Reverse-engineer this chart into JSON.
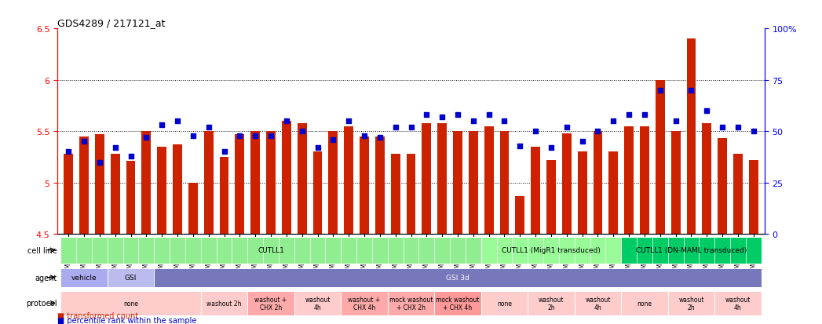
{
  "title": "GDS4289 / 217121_at",
  "samples": [
    "GSM731500",
    "GSM731501",
    "GSM731502",
    "GSM731503",
    "GSM731504",
    "GSM731505",
    "GSM731518",
    "GSM731519",
    "GSM731520",
    "GSM731506",
    "GSM731507",
    "GSM731508",
    "GSM731509",
    "GSM731510",
    "GSM731511",
    "GSM731512",
    "GSM731513",
    "GSM731514",
    "GSM731515",
    "GSM731516",
    "GSM731517",
    "GSM731521",
    "GSM731522",
    "GSM731523",
    "GSM731524",
    "GSM731525",
    "GSM731526",
    "GSM731527",
    "GSM731528",
    "GSM731529",
    "GSM731531",
    "GSM731532",
    "GSM731533",
    "GSM731534",
    "GSM731535",
    "GSM731536",
    "GSM731537",
    "GSM731538",
    "GSM731539",
    "GSM731540",
    "GSM731541",
    "GSM731542",
    "GSM731543",
    "GSM731544",
    "GSM731545"
  ],
  "bar_values": [
    5.28,
    5.45,
    5.47,
    5.28,
    5.21,
    5.5,
    5.35,
    5.37,
    5.0,
    5.5,
    5.25,
    5.47,
    5.5,
    5.5,
    5.6,
    5.58,
    5.3,
    5.5,
    5.55,
    5.45,
    5.45,
    5.28,
    5.28,
    5.58,
    5.58,
    5.5,
    5.5,
    5.55,
    5.5,
    4.87,
    5.35,
    5.22,
    5.48,
    5.3,
    5.5,
    5.3,
    5.55,
    5.55,
    6.0,
    5.5,
    6.4,
    5.58,
    5.43,
    5.28,
    5.22
  ],
  "percentile_values": [
    40,
    45,
    35,
    42,
    38,
    47,
    53,
    55,
    48,
    52,
    40,
    48,
    48,
    48,
    55,
    50,
    42,
    46,
    55,
    48,
    47,
    52,
    52,
    58,
    57,
    58,
    55,
    58,
    55,
    43,
    50,
    42,
    52,
    45,
    50,
    55,
    58,
    58,
    70,
    55,
    70,
    60,
    52,
    52,
    50
  ],
  "ylim_left": [
    4.5,
    6.5
  ],
  "ylim_right": [
    0,
    100
  ],
  "yticks_left": [
    4.5,
    5.0,
    5.5,
    6.0,
    6.5
  ],
  "yticks_right": [
    0,
    25,
    50,
    75,
    100
  ],
  "ytick_labels_left": [
    "4.5",
    "5",
    "5.5",
    "6",
    "6.5"
  ],
  "ytick_labels_right": [
    "0",
    "25",
    "50",
    "75",
    "100%"
  ],
  "bar_color": "#CC2200",
  "dot_color": "#0000CC",
  "gridline_color": "#000000",
  "cell_line_groups": [
    {
      "label": "CUTLL1",
      "start": 0,
      "end": 27,
      "color": "#90EE90"
    },
    {
      "label": "CUTLL1 (MigR1 transduced)",
      "start": 27,
      "end": 36,
      "color": "#98FB98"
    },
    {
      "label": "CUTLL1 (DN-MAML transduced)",
      "start": 36,
      "end": 45,
      "color": "#00CC66"
    }
  ],
  "agent_groups": [
    {
      "label": "vehicle",
      "start": 0,
      "end": 3,
      "color": "#AAAADD"
    },
    {
      "label": "GSI",
      "start": 3,
      "end": 6,
      "color": "#AAAADD"
    },
    {
      "label": "GSI 3d",
      "start": 6,
      "end": 45,
      "color": "#7777CC"
    }
  ],
  "protocol_groups": [
    {
      "label": "none",
      "start": 0,
      "end": 9,
      "color": "#FFCCCC"
    },
    {
      "label": "washout 2h",
      "start": 9,
      "end": 12,
      "color": "#FFCCCC"
    },
    {
      "label": "washout +\nCHX 2h",
      "start": 12,
      "end": 15,
      "color": "#FFAAAA"
    },
    {
      "label": "washout\n4h",
      "start": 15,
      "end": 18,
      "color": "#FFCCCC"
    },
    {
      "label": "washout +\nCHX 4h",
      "start": 18,
      "end": 21,
      "color": "#FFAAAA"
    },
    {
      "label": "mock washout\n+ CHX 2h",
      "start": 21,
      "end": 24,
      "color": "#FFAAAA"
    },
    {
      "label": "mock washout\n+ CHX 4h",
      "start": 24,
      "end": 27,
      "color": "#FF9999"
    },
    {
      "label": "none",
      "start": 27,
      "end": 30,
      "color": "#FFCCCC"
    },
    {
      "label": "washout\n2h",
      "start": 30,
      "end": 33,
      "color": "#FFCCCC"
    },
    {
      "label": "washout\n4h",
      "start": 33,
      "end": 36,
      "color": "#FFCCCC"
    },
    {
      "label": "none",
      "start": 36,
      "end": 39,
      "color": "#FFCCCC"
    },
    {
      "label": "washout\n2h",
      "start": 39,
      "end": 42,
      "color": "#FFCCCC"
    },
    {
      "label": "washout\n4h",
      "start": 42,
      "end": 45,
      "color": "#FFCCCC"
    }
  ],
  "row_labels": [
    "cell line",
    "agent",
    "protocol"
  ],
  "legend_items": [
    {
      "label": "transformed count",
      "color": "#CC2200",
      "marker": "s"
    },
    {
      "label": "percentile rank within the sample",
      "color": "#0000CC",
      "marker": "s"
    }
  ]
}
